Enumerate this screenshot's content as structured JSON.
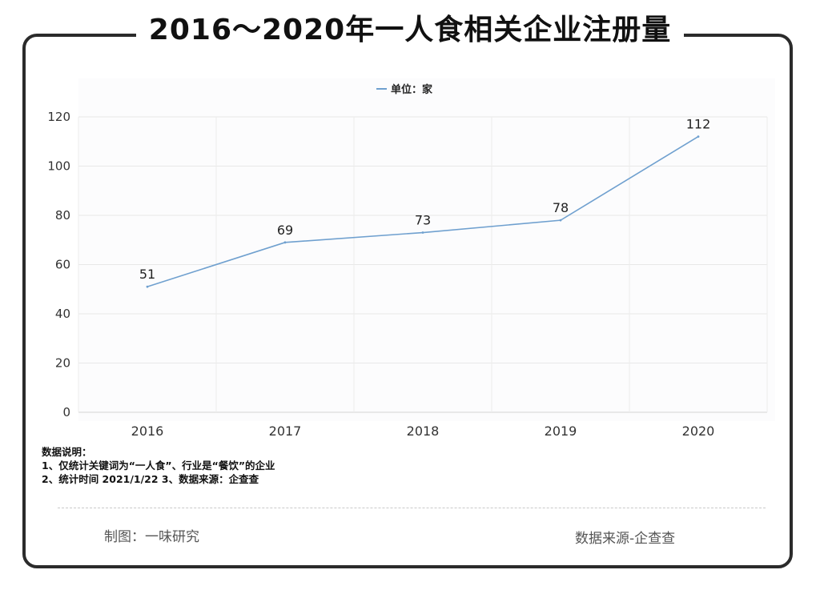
{
  "header": {
    "title": "2016～2020年一人食相关企业注册量"
  },
  "chart_data": {
    "type": "line",
    "categories": [
      "2016",
      "2017",
      "2018",
      "2019",
      "2020"
    ],
    "series": [
      {
        "name": "单位：家",
        "values": [
          51,
          69,
          73,
          78,
          112
        ],
        "color": "#6fa0cf"
      }
    ],
    "data_labels": [
      "51",
      "69",
      "73",
      "78",
      "112"
    ],
    "y_ticks": [
      "0",
      "20",
      "40",
      "60",
      "80",
      "100",
      "120"
    ],
    "ylim": [
      0,
      120
    ],
    "grid": true,
    "legend_position": "top-center"
  },
  "notes": {
    "title": "数据说明：",
    "line1": "1、仅统计关键词为“一人食”、行业是“餐饮”的企业",
    "line2": "2、统计时间 2021/1/22     3、数据来源：企查查"
  },
  "footer": {
    "left": "制图：一味研究",
    "right": "数据来源-企查查"
  }
}
